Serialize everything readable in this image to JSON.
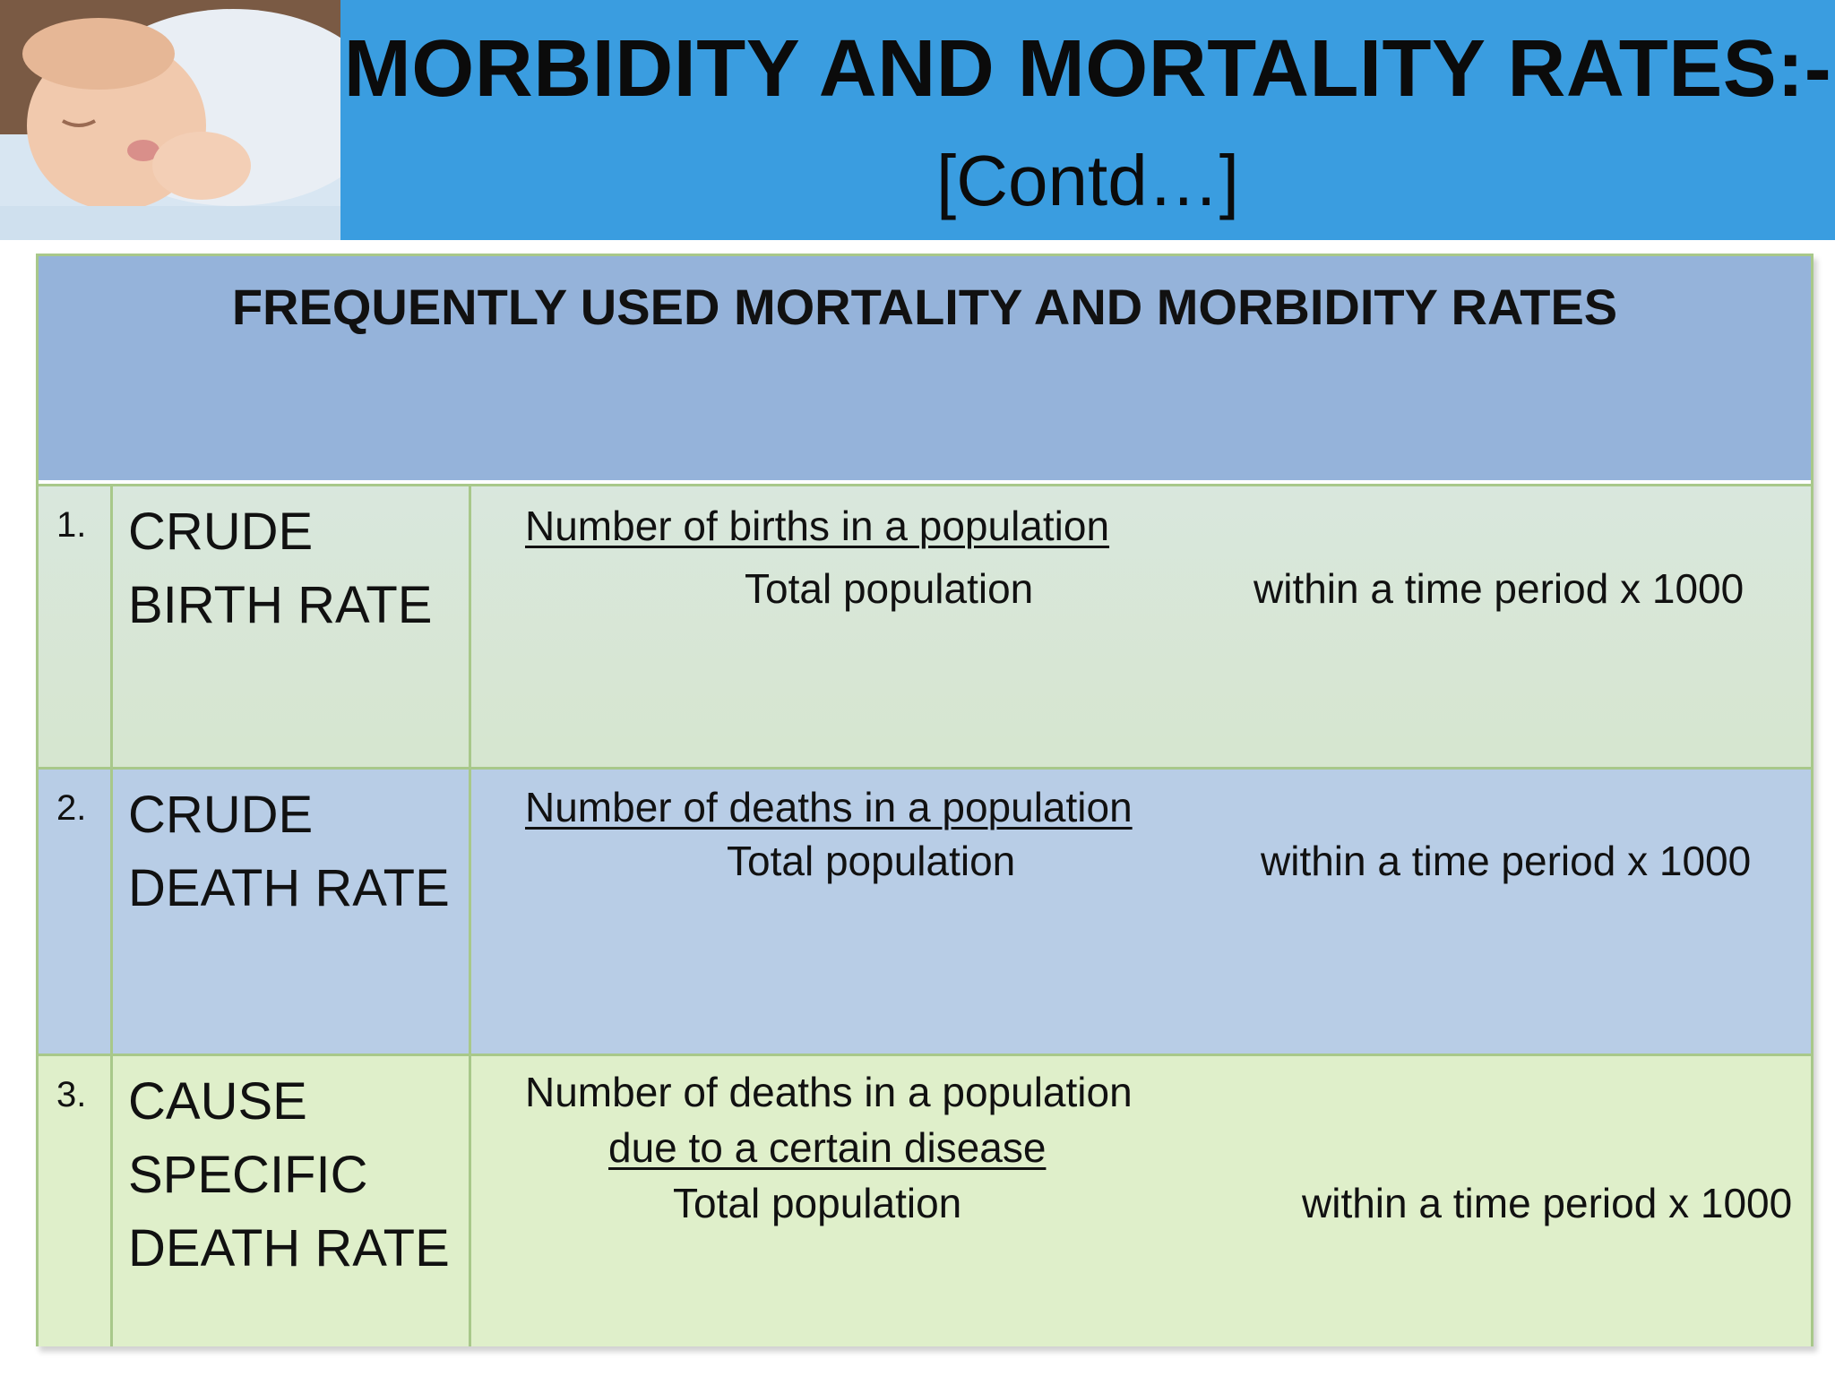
{
  "header": {
    "title": "MORBIDITY AND MORTALITY RATES:-",
    "subtitle": "[Contd…]",
    "color": "#3a9de0"
  },
  "table": {
    "heading": "FREQUENTLY USED MORTALITY AND MORBIDITY RATES",
    "heading_color": "#95b3da",
    "rows": [
      {
        "number": "1.",
        "name_lines": [
          "CRUDE",
          "BIRTH RATE"
        ],
        "numerator": "Number of births in a population",
        "denominator": "Total population",
        "multiplier": "within a time period x  1000"
      },
      {
        "number": "2.",
        "name_lines": [
          "CRUDE",
          "DEATH RATE"
        ],
        "numerator": "Number of deaths in a population",
        "denominator": "Total population",
        "multiplier": "within a time period x  1000"
      },
      {
        "number": "3.",
        "name_lines": [
          "CAUSE",
          "SPECIFIC",
          "DEATH RATE"
        ],
        "numerator_line1": "Number of deaths in a population",
        "numerator_line2": "due to a certain disease",
        "denominator": "Total population",
        "multiplier": "within a time period x  1000"
      }
    ]
  }
}
